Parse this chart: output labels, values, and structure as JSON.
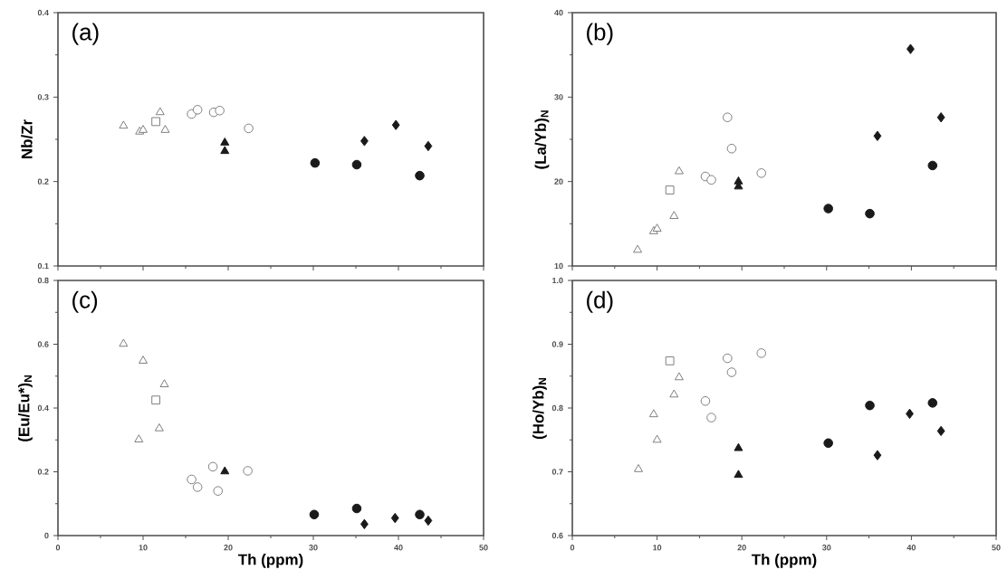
{
  "chart_data": [
    {
      "type": "scatter",
      "ylabel": "Nb/Zr",
      "annotations": [
        "(a)"
      ],
      "xlim": [
        0,
        50
      ],
      "xticks": [
        0,
        10,
        20,
        30,
        40,
        50
      ],
      "ylim": [
        0.1,
        0.4
      ],
      "yticks": [
        0.1,
        0.2,
        0.3,
        0.4
      ],
      "tick_labels": "y",
      "series": [
        {
          "marker": "triangle",
          "color": "#7f7f7f",
          "x": [
            7.7,
            9.6,
            10.0,
            12.0,
            12.6
          ],
          "values": [
            0.266,
            0.259,
            0.261,
            0.282,
            0.261
          ]
        },
        {
          "marker": "square",
          "color": "#7f7f7f",
          "x": [
            11.5
          ],
          "values": [
            0.271
          ]
        },
        {
          "marker": "circle",
          "color": "#7f7f7f",
          "x": [
            15.7,
            16.4,
            18.3,
            19.0,
            22.4
          ],
          "values": [
            0.28,
            0.285,
            0.282,
            0.284,
            0.263
          ]
        },
        {
          "marker": "triangle",
          "color": "#1a1a1a",
          "x": [
            19.6,
            19.6
          ],
          "values": [
            0.246,
            0.236
          ]
        },
        {
          "marker": "circle",
          "color": "#1a1a1a",
          "x": [
            30.2,
            35.1,
            42.5
          ],
          "values": [
            0.222,
            0.22,
            0.207
          ]
        },
        {
          "marker": "diamond",
          "color": "#1a1a1a",
          "x": [
            36.0,
            39.7,
            43.5
          ],
          "values": [
            0.248,
            0.267,
            0.242
          ]
        }
      ]
    },
    {
      "type": "scatter",
      "ylabel": "(La/Yb)$_{N}$",
      "annotations": [
        "(b)"
      ],
      "xlim": [
        0,
        50
      ],
      "xticks": [
        0,
        10,
        20,
        30,
        40,
        50
      ],
      "ylim": [
        10,
        40
      ],
      "yticks": [
        10,
        20,
        30,
        40
      ],
      "tick_labels": "y",
      "series": [
        {
          "marker": "triangle",
          "color": "#7f7f7f",
          "x": [
            7.7,
            9.6,
            10.0,
            12.0,
            12.6
          ],
          "values": [
            11.9,
            14.1,
            14.4,
            15.9,
            21.2
          ]
        },
        {
          "marker": "square",
          "color": "#7f7f7f",
          "x": [
            11.5
          ],
          "values": [
            19.0
          ]
        },
        {
          "marker": "circle",
          "color": "#7f7f7f",
          "x": [
            15.7,
            16.4,
            18.3,
            18.8,
            22.3
          ],
          "values": [
            20.6,
            20.2,
            27.6,
            23.9,
            21.0
          ]
        },
        {
          "marker": "triangle",
          "color": "#1a1a1a",
          "x": [
            19.6,
            19.6
          ],
          "values": [
            20.0,
            19.4
          ]
        },
        {
          "marker": "circle",
          "color": "#1a1a1a",
          "x": [
            30.2,
            35.1,
            42.5
          ],
          "values": [
            16.8,
            16.2,
            21.9
          ]
        },
        {
          "marker": "diamond",
          "color": "#1a1a1a",
          "x": [
            36.0,
            39.9,
            43.5
          ],
          "values": [
            25.4,
            35.7,
            27.6
          ]
        }
      ]
    },
    {
      "type": "scatter",
      "xlabel": "Th (ppm)",
      "ylabel": "(Eu/Eu*)$_{N}$",
      "annotations": [
        "(c)"
      ],
      "xlim": [
        0,
        50
      ],
      "xticks": [
        0,
        10,
        20,
        30,
        40,
        50
      ],
      "ylim": [
        0,
        0.8
      ],
      "yticks": [
        0,
        0.2,
        0.4,
        0.6,
        0.8
      ],
      "series": [
        {
          "marker": "triangle",
          "color": "#7f7f7f",
          "x": [
            7.7,
            10.0,
            12.5,
            9.5,
            11.9
          ],
          "values": [
            0.601,
            0.548,
            0.474,
            0.301,
            0.336
          ]
        },
        {
          "marker": "square",
          "color": "#7f7f7f",
          "x": [
            11.5
          ],
          "values": [
            0.425
          ]
        },
        {
          "marker": "circle",
          "color": "#7f7f7f",
          "x": [
            15.7,
            16.4,
            18.2,
            18.8,
            22.3
          ],
          "values": [
            0.176,
            0.152,
            0.216,
            0.14,
            0.203
          ]
        },
        {
          "marker": "triangle",
          "color": "#1a1a1a",
          "x": [
            19.6
          ],
          "values": [
            0.201
          ]
        },
        {
          "marker": "circle",
          "color": "#1a1a1a",
          "x": [
            30.1,
            35.1,
            42.5
          ],
          "values": [
            0.066,
            0.085,
            0.066
          ]
        },
        {
          "marker": "diamond",
          "color": "#1a1a1a",
          "x": [
            36.0,
            39.6,
            43.5
          ],
          "values": [
            0.036,
            0.055,
            0.047
          ]
        }
      ]
    },
    {
      "type": "scatter",
      "xlabel": "Th (ppm)",
      "ylabel": "(Ho/Yb)$_{N}$",
      "annotations": [
        "(d)"
      ],
      "xlim": [
        0,
        50
      ],
      "xticks": [
        0,
        10,
        20,
        30,
        40,
        50
      ],
      "ylim": [
        0.6,
        1.0
      ],
      "yticks": [
        0.6,
        0.7,
        0.8,
        0.9,
        {
          "value": 1.0,
          "label": "1.0"
        }
      ],
      "series": [
        {
          "marker": "triangle",
          "color": "#7f7f7f",
          "x": [
            7.8,
            9.6,
            10.0,
            12.0,
            12.6
          ],
          "values": [
            0.704,
            0.79,
            0.75,
            0.821,
            0.848
          ]
        },
        {
          "marker": "square",
          "color": "#7f7f7f",
          "x": [
            11.5
          ],
          "values": [
            0.874
          ]
        },
        {
          "marker": "circle",
          "color": "#7f7f7f",
          "x": [
            15.7,
            16.4,
            18.3,
            18.8,
            22.3
          ],
          "values": [
            0.811,
            0.785,
            0.878,
            0.856,
            0.886
          ]
        },
        {
          "marker": "triangle",
          "color": "#1a1a1a",
          "x": [
            19.6,
            19.6
          ],
          "values": [
            0.737,
            0.695
          ]
        },
        {
          "marker": "circle",
          "color": "#1a1a1a",
          "x": [
            30.2,
            35.1,
            42.5
          ],
          "values": [
            0.745,
            0.804,
            0.808
          ]
        },
        {
          "marker": "diamond",
          "color": "#1a1a1a",
          "x": [
            36.0,
            39.8,
            43.5
          ],
          "values": [
            0.726,
            0.791,
            0.764
          ]
        }
      ]
    }
  ]
}
